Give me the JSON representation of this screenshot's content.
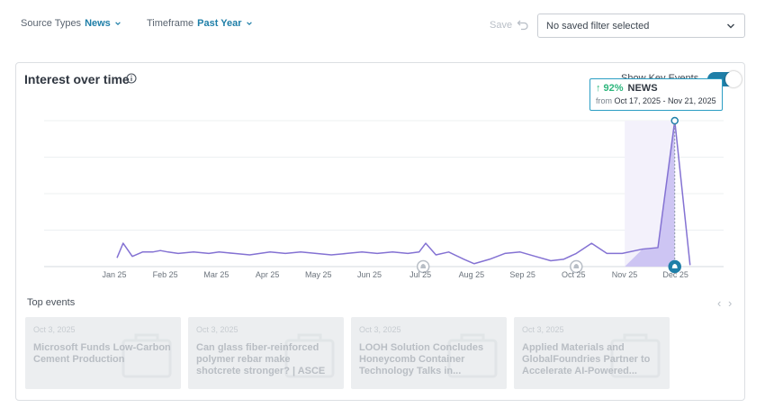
{
  "filters": {
    "source_label": "Source Types",
    "source_value": "News",
    "timeframe_label": "Timeframe",
    "timeframe_value": "Past Year",
    "save_label": "Save",
    "saved_filter_value": "No saved filter selected"
  },
  "card": {
    "title": "Interest over time",
    "toggle_label": "Show Key Events",
    "toggle_on": true
  },
  "tooltip": {
    "arrow": "↑",
    "percent": "92%",
    "source": "NEWS",
    "from_label": "from",
    "range": "Oct 17, 2025 - Nov 21, 2025"
  },
  "chart_data": {
    "type": "line",
    "title": "",
    "categories": [
      "Jan 25",
      "Feb 25",
      "Mar 25",
      "Apr 25",
      "May 25",
      "Jun 25",
      "Jul 25",
      "Aug 25",
      "Sep 25",
      "Oct 25",
      "Nov 25",
      "Dec 25"
    ],
    "x": [
      0.0,
      0.12,
      0.3,
      0.5,
      0.7,
      0.85,
      1.0,
      1.2,
      1.5,
      1.8,
      2.0,
      2.3,
      2.6,
      3.0,
      3.3,
      3.6,
      3.9,
      4.2,
      4.5,
      4.8,
      5.1,
      5.4,
      5.7,
      5.92,
      6.05,
      6.25,
      6.5,
      6.8,
      7.0,
      7.3,
      7.6,
      7.9,
      8.2,
      8.5,
      8.75,
      9.0,
      9.3,
      9.6,
      9.9,
      10.3,
      10.6,
      10.93,
      11.23
    ],
    "y": [
      6,
      16,
      7,
      10,
      10,
      11,
      10,
      9,
      10,
      9,
      10,
      9,
      8,
      10,
      9,
      10,
      9,
      8,
      9,
      10,
      9,
      10,
      9,
      10,
      16,
      8,
      10,
      5,
      2,
      5,
      9,
      10,
      7,
      4,
      5,
      9,
      16,
      9,
      9,
      12,
      13,
      100,
      1
    ],
    "key_events_x": [
      6.0,
      9.0,
      10.93
    ],
    "highlight_range": [
      9.95,
      10.93
    ],
    "grid": true,
    "legend": "none"
  },
  "events": {
    "title": "Top events",
    "prev_glyph": "‹",
    "next_glyph": "›",
    "items": [
      {
        "date": "Oct 3, 2025",
        "title": "Microsoft Funds Low-Carbon Cement Production"
      },
      {
        "date": "Oct 3, 2025",
        "title": "Can glass fiber-reinforced polymer rebar make shotcrete stronger? | ASCE"
      },
      {
        "date": "Oct 3, 2025",
        "title": "LOOH Solution Concludes Honeycomb Container Technology Talks in..."
      },
      {
        "date": "Oct 3, 2025",
        "title": "Applied Materials and GlobalFoundries Partner to Accelerate AI-Powered..."
      }
    ]
  }
}
